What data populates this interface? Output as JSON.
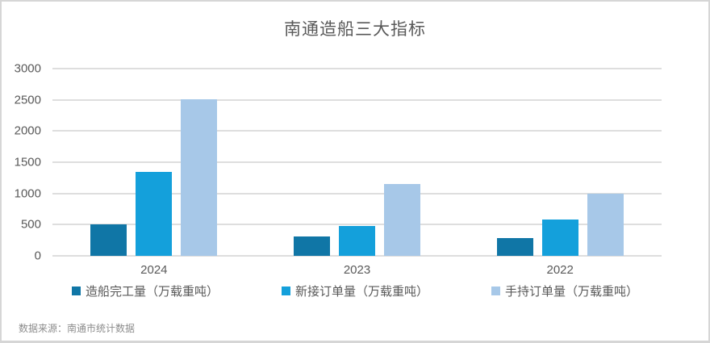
{
  "chart_data": {
    "type": "bar",
    "title": "南通造船三大指标",
    "categories": [
      "2024",
      "2023",
      "2022"
    ],
    "series": [
      {
        "name": "造船完工量（万载重吨）",
        "color": "#1076A6",
        "values": [
          510,
          310,
          290
        ]
      },
      {
        "name": "新接订单量（万载重吨）",
        "color": "#14A0DB",
        "values": [
          1350,
          480,
          585
        ]
      },
      {
        "name": "手持订单量（万载重吨）",
        "color": "#A7C8E8",
        "values": [
          2510,
          1150,
          990
        ]
      }
    ],
    "ylim": [
      0,
      3000
    ],
    "ytick_step": 500,
    "yticks": [
      0,
      500,
      1000,
      1500,
      2000,
      2500,
      3000
    ],
    "grid": true,
    "gridline_color": "#DEDEDE",
    "legend_position": "bottom",
    "source_note": "数据来源：南通市统计数据",
    "frame_border_color": "#D6D6D6",
    "text_color": "#595959"
  }
}
